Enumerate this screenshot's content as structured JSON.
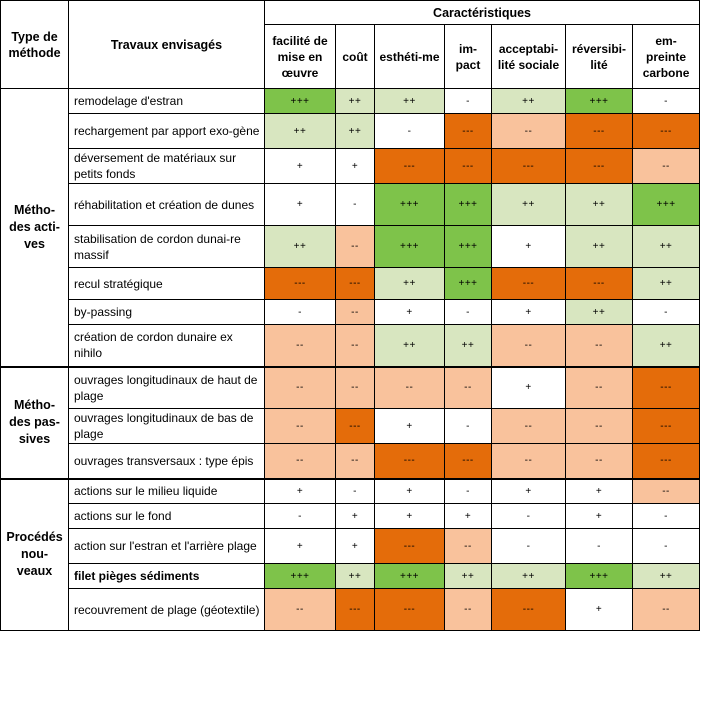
{
  "header": {
    "type_label": "Type de méthode",
    "works_label": "Travaux envisagés",
    "characteristics_label": "Caractéristiques",
    "columns": [
      "facilité de mise en œuvre",
      "coût",
      "esthéti-me",
      "im-pact",
      "acceptabi-lité sociale",
      "réversibi-lité",
      "em-preinte carbone"
    ]
  },
  "palette": {
    "green": "#7ec34a",
    "light_green": "#d8e6c0",
    "orange": "#e46c0a",
    "peach": "#f9c29c",
    "white": "#ffffff"
  },
  "groups": [
    {
      "label": "Métho-des acti-ves",
      "rows": [
        {
          "name": "remodelage d'estran",
          "values": [
            "+++",
            "++",
            "++",
            "-",
            "++",
            "+++",
            "-"
          ],
          "colors": [
            "green",
            "light_green",
            "light_green",
            "white",
            "light_green",
            "green",
            "white"
          ]
        },
        {
          "name": "rechargement par apport exo-gène",
          "values": [
            "++",
            "++",
            "-",
            "---",
            "--",
            "---",
            "---"
          ],
          "colors": [
            "light_green",
            "light_green",
            "white",
            "orange",
            "peach",
            "orange",
            "orange"
          ]
        },
        {
          "name": "déversement de matériaux sur petits fonds",
          "values": [
            "+",
            "+",
            "---",
            "---",
            "---",
            "---",
            "--"
          ],
          "colors": [
            "white",
            "white",
            "orange",
            "orange",
            "orange",
            "orange",
            "peach"
          ]
        },
        {
          "name": "réhabilitation et création de dunes",
          "values": [
            "+",
            "-",
            "+++",
            "+++",
            "++",
            "++",
            "+++"
          ],
          "colors": [
            "white",
            "white",
            "green",
            "green",
            "light_green",
            "light_green",
            "green"
          ]
        },
        {
          "name": "stabilisation de cordon dunai-re massif",
          "values": [
            "++",
            "--",
            "+++",
            "+++",
            "+",
            "++",
            "++"
          ],
          "colors": [
            "light_green",
            "peach",
            "green",
            "green",
            "white",
            "light_green",
            "light_green"
          ]
        },
        {
          "name": "recul stratégique",
          "values": [
            "---",
            "---",
            "++",
            "+++",
            "---",
            "---",
            "++"
          ],
          "colors": [
            "orange",
            "orange",
            "light_green",
            "green",
            "orange",
            "orange",
            "light_green"
          ]
        },
        {
          "name": "by-passing",
          "values": [
            "-",
            "--",
            "+",
            "-",
            "+",
            "++",
            "-"
          ],
          "colors": [
            "white",
            "peach",
            "white",
            "white",
            "white",
            "light_green",
            "white"
          ]
        },
        {
          "name": "création de cordon dunaire ex nihilo",
          "values": [
            "--",
            "--",
            "++",
            "++",
            "--",
            "--",
            "++"
          ],
          "colors": [
            "peach",
            "peach",
            "light_green",
            "light_green",
            "peach",
            "peach",
            "light_green"
          ]
        }
      ]
    },
    {
      "label": "Métho-des pas-sives",
      "rows": [
        {
          "name": "ouvrages longitudinaux de haut de plage",
          "values": [
            "--",
            "--",
            "--",
            "--",
            "+",
            "--",
            "---"
          ],
          "colors": [
            "peach",
            "peach",
            "peach",
            "peach",
            "white",
            "peach",
            "orange"
          ]
        },
        {
          "name": "ouvrages longitudinaux de bas de plage",
          "values": [
            "--",
            "---",
            "+",
            "-",
            "--",
            "--",
            "---"
          ],
          "colors": [
            "peach",
            "orange",
            "white",
            "white",
            "peach",
            "peach",
            "orange"
          ]
        },
        {
          "name": "ouvrages transversaux : type épis",
          "values": [
            "--",
            "--",
            "---",
            "---",
            "--",
            "--",
            "---"
          ],
          "colors": [
            "peach",
            "peach",
            "orange",
            "orange",
            "peach",
            "peach",
            "orange"
          ]
        }
      ]
    },
    {
      "label": "Procédés nou-veaux",
      "rows": [
        {
          "name": "actions sur le milieu liquide",
          "bold": false,
          "values": [
            "+",
            "-",
            "+",
            "-",
            "+",
            "+",
            "--"
          ],
          "colors": [
            "white",
            "white",
            "white",
            "white",
            "white",
            "white",
            "peach"
          ]
        },
        {
          "name": "actions sur le fond",
          "bold": false,
          "values": [
            "-",
            "+",
            "+",
            "+",
            "-",
            "+",
            "-"
          ],
          "colors": [
            "white",
            "white",
            "white",
            "white",
            "white",
            "white",
            "white"
          ]
        },
        {
          "name": "action sur l'estran et l'arrière plage",
          "bold": false,
          "values": [
            "+",
            "+",
            "---",
            "--",
            "-",
            "-",
            "-"
          ],
          "colors": [
            "white",
            "white",
            "orange",
            "peach",
            "white",
            "white",
            "white"
          ]
        },
        {
          "name": "filet pièges sédiments",
          "bold": true,
          "values": [
            "+++",
            "++",
            "+++",
            "++",
            "++",
            "+++",
            "++"
          ],
          "colors": [
            "green",
            "light_green",
            "green",
            "light_green",
            "light_green",
            "green",
            "light_green"
          ]
        },
        {
          "name": "recouvrement de plage (géotextile)",
          "bold": false,
          "values": [
            "--",
            "---",
            "---",
            "--",
            "---",
            "+",
            "--"
          ],
          "colors": [
            "peach",
            "orange",
            "orange",
            "peach",
            "orange",
            "white",
            "peach"
          ]
        }
      ]
    }
  ]
}
